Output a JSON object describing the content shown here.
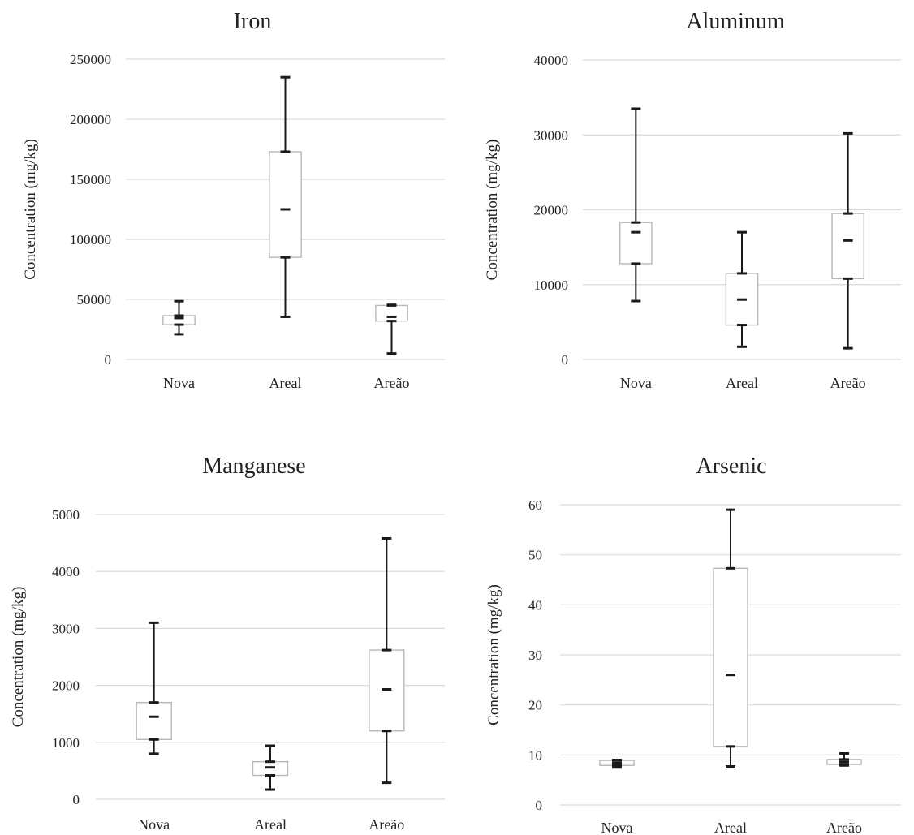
{
  "chart_data": [
    {
      "type": "box",
      "title": "Iron",
      "ylabel": "Concentration (mg/kg)",
      "ylim": [
        0,
        250000
      ],
      "yticks": [
        0,
        50000,
        100000,
        150000,
        200000,
        250000
      ],
      "ytick_labels": [
        "0",
        "50000",
        "100000",
        "150000",
        "200000",
        "250000"
      ],
      "grid": true,
      "categories": [
        "Nova",
        "Areal",
        "Areão"
      ],
      "boxes": [
        {
          "min": 21000,
          "q1": 29000,
          "median": 34500,
          "q3": 36500,
          "max": 48500
        },
        {
          "min": 35500,
          "q1": 85000,
          "median": 125000,
          "q3": 173000,
          "max": 235000
        },
        {
          "min": 5000,
          "q1": 32000,
          "median": 35500,
          "q3": 45000,
          "max": 45500
        }
      ]
    },
    {
      "type": "box",
      "title": "Aluminum",
      "ylabel": "Concentration (mg/kg)",
      "ylim": [
        0,
        40000
      ],
      "yticks": [
        0,
        10000,
        20000,
        30000,
        40000
      ],
      "ytick_labels": [
        "0",
        "10000",
        "20000",
        "30000",
        "40000"
      ],
      "grid": true,
      "categories": [
        "Nova",
        "Areal",
        "Areão"
      ],
      "boxes": [
        {
          "min": 7800,
          "q1": 12800,
          "median": 17000,
          "q3": 18300,
          "max": 33500
        },
        {
          "min": 1700,
          "q1": 4600,
          "median": 8000,
          "q3": 11500,
          "max": 17000
        },
        {
          "min": 1500,
          "q1": 10800,
          "median": 15900,
          "q3": 19500,
          "max": 30200
        }
      ]
    },
    {
      "type": "box",
      "title": "Manganese",
      "ylabel": "Concentration (mg/kg)",
      "ylim": [
        0,
        5000
      ],
      "yticks": [
        0,
        1000,
        2000,
        3000,
        4000,
        5000
      ],
      "ytick_labels": [
        "0",
        "1000",
        "2000",
        "3000",
        "4000",
        "5000"
      ],
      "grid": true,
      "categories": [
        "Nova",
        "Areal",
        "Areão"
      ],
      "boxes": [
        {
          "min": 800,
          "q1": 1050,
          "median": 1450,
          "q3": 1700,
          "max": 3100
        },
        {
          "min": 170,
          "q1": 420,
          "median": 560,
          "q3": 660,
          "max": 940
        },
        {
          "min": 290,
          "q1": 1200,
          "median": 1930,
          "q3": 2620,
          "max": 4580
        }
      ]
    },
    {
      "type": "box",
      "title": "Arsenic",
      "ylabel": "Concentration (mg/kg)",
      "ylim": [
        0,
        60
      ],
      "yticks": [
        0,
        10,
        20,
        30,
        40,
        50,
        60
      ],
      "ytick_labels": [
        "0",
        "10",
        "20",
        "30",
        "40",
        "50",
        "60"
      ],
      "grid": true,
      "categories": [
        "Nova",
        "Areal",
        "Areão"
      ],
      "boxes": [
        {
          "min": 7.5,
          "q1": 7.9,
          "median": 8.4,
          "q3": 8.9,
          "max": 9.0
        },
        {
          "min": 7.7,
          "q1": 11.7,
          "median": 26,
          "q3": 47.3,
          "max": 59
        },
        {
          "min": 7.9,
          "q1": 8.1,
          "median": 8.6,
          "q3": 9.1,
          "max": 10.3
        }
      ]
    }
  ]
}
